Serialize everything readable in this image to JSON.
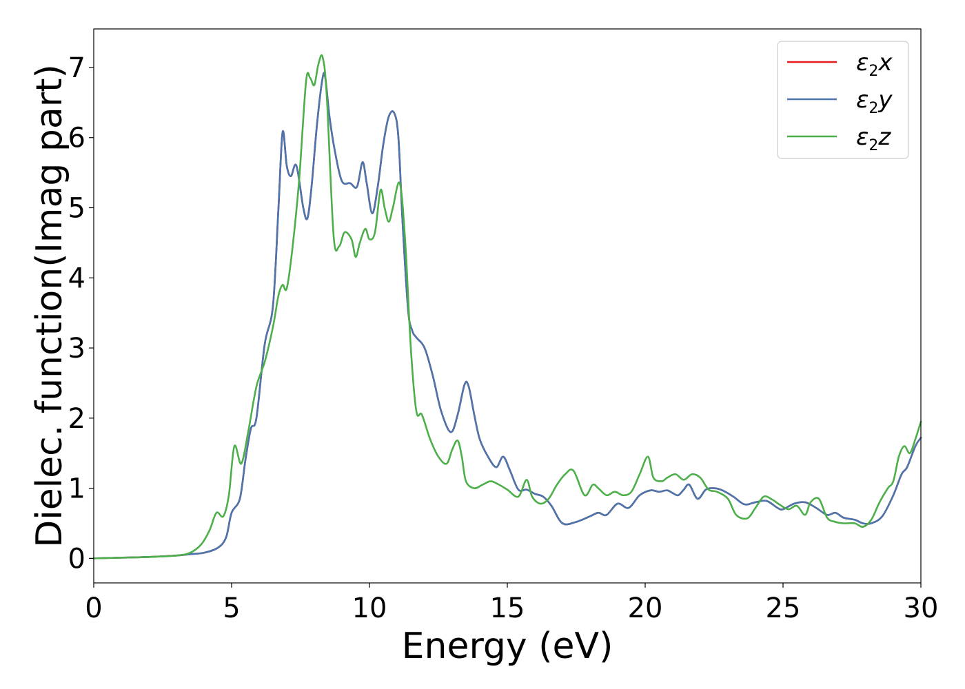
{
  "chart_data": {
    "type": "line",
    "xlabel": "Energy (eV)",
    "ylabel": "Dielec. function(Imag part)",
    "xlim": [
      0,
      30
    ],
    "ylim": [
      -0.35,
      7.55
    ],
    "xticks": [
      "0",
      "5",
      "10",
      "15",
      "20",
      "25",
      "30"
    ],
    "yticks": [
      "0",
      "1",
      "2",
      "3",
      "4",
      "5",
      "6",
      "7"
    ],
    "grid": false,
    "legend_position": "top-right",
    "series": [
      {
        "name": "ε2x",
        "legend_base": "ε",
        "legend_sub": "2",
        "legend_var": "x",
        "color": "#e41a1c",
        "x": [
          0,
          1,
          2,
          3,
          3.5,
          4,
          4.5,
          4.8,
          5.0,
          5.3,
          5.5,
          5.7,
          5.9,
          6.2,
          6.5,
          6.7,
          6.85,
          7.0,
          7.15,
          7.35,
          7.6,
          7.75,
          7.9,
          8.1,
          8.3,
          8.4,
          8.55,
          8.75,
          9.0,
          9.3,
          9.55,
          9.75,
          9.9,
          10.1,
          10.3,
          10.5,
          10.7,
          10.9,
          11.05,
          11.2,
          11.4,
          11.55,
          11.7,
          12.0,
          12.3,
          12.6,
          12.95,
          13.2,
          13.45,
          13.6,
          13.8,
          14.0,
          14.3,
          14.6,
          14.85,
          15.1,
          15.4,
          15.7,
          16.0,
          16.3,
          16.6,
          17.0,
          17.5,
          18.0,
          18.3,
          18.6,
          19.0,
          19.4,
          19.8,
          20.2,
          20.5,
          20.8,
          21.0,
          21.2,
          21.4,
          21.6,
          21.9,
          22.2,
          22.5,
          22.8,
          23.2,
          23.6,
          24.0,
          24.4,
          24.8,
          25.0,
          25.4,
          25.8,
          26.2,
          26.6,
          26.9,
          27.2,
          27.6,
          27.9,
          28.2,
          28.6,
          29.0,
          29.3,
          29.5,
          29.8,
          30.0
        ],
        "y": [
          0,
          0.01,
          0.02,
          0.04,
          0.06,
          0.08,
          0.15,
          0.3,
          0.65,
          0.85,
          1.4,
          1.85,
          2.0,
          3.05,
          3.6,
          5.0,
          6.08,
          5.6,
          5.45,
          5.6,
          5.0,
          4.85,
          5.3,
          6.2,
          6.85,
          6.85,
          6.3,
          5.8,
          5.38,
          5.35,
          5.3,
          5.65,
          5.35,
          4.92,
          5.3,
          5.9,
          6.3,
          6.35,
          6.0,
          4.8,
          3.55,
          3.25,
          3.15,
          3.0,
          2.6,
          2.1,
          1.8,
          2.05,
          2.48,
          2.45,
          2.05,
          1.7,
          1.45,
          1.3,
          1.45,
          1.25,
          0.98,
          0.98,
          0.92,
          0.88,
          0.75,
          0.5,
          0.52,
          0.6,
          0.65,
          0.62,
          0.78,
          0.72,
          0.9,
          0.97,
          0.95,
          0.97,
          0.93,
          0.9,
          0.98,
          1.05,
          0.85,
          0.98,
          1.0,
          0.97,
          0.88,
          0.77,
          0.8,
          0.82,
          0.72,
          0.7,
          0.78,
          0.8,
          0.72,
          0.62,
          0.65,
          0.58,
          0.55,
          0.5,
          0.5,
          0.6,
          0.9,
          1.2,
          1.3,
          1.6,
          1.72
        ]
      },
      {
        "name": "ε2y",
        "legend_base": "ε",
        "legend_sub": "2",
        "legend_var": "y",
        "color": "#4a76ad",
        "x": [
          0,
          1,
          2,
          3,
          3.5,
          4,
          4.5,
          4.8,
          5.0,
          5.3,
          5.5,
          5.7,
          5.9,
          6.2,
          6.5,
          6.7,
          6.85,
          7.0,
          7.15,
          7.35,
          7.6,
          7.75,
          7.9,
          8.1,
          8.3,
          8.4,
          8.55,
          8.75,
          9.0,
          9.3,
          9.55,
          9.75,
          9.9,
          10.1,
          10.3,
          10.5,
          10.7,
          10.9,
          11.05,
          11.2,
          11.4,
          11.55,
          11.7,
          12.0,
          12.3,
          12.6,
          12.95,
          13.2,
          13.45,
          13.6,
          13.8,
          14.0,
          14.3,
          14.6,
          14.85,
          15.1,
          15.4,
          15.7,
          16.0,
          16.3,
          16.6,
          17.0,
          17.5,
          18.0,
          18.3,
          18.6,
          19.0,
          19.4,
          19.8,
          20.2,
          20.5,
          20.8,
          21.0,
          21.2,
          21.4,
          21.6,
          21.9,
          22.2,
          22.5,
          22.8,
          23.2,
          23.6,
          24.0,
          24.4,
          24.8,
          25.0,
          25.4,
          25.8,
          26.2,
          26.6,
          26.9,
          27.2,
          27.6,
          27.9,
          28.2,
          28.6,
          29.0,
          29.3,
          29.5,
          29.8,
          30.0
        ],
        "y": [
          0,
          0.01,
          0.02,
          0.04,
          0.06,
          0.08,
          0.15,
          0.3,
          0.65,
          0.85,
          1.4,
          1.85,
          2.0,
          3.05,
          3.6,
          5.0,
          6.08,
          5.6,
          5.45,
          5.6,
          5.0,
          4.85,
          5.3,
          6.2,
          6.85,
          6.85,
          6.3,
          5.8,
          5.38,
          5.35,
          5.3,
          5.65,
          5.35,
          4.92,
          5.3,
          5.9,
          6.3,
          6.35,
          6.0,
          4.8,
          3.55,
          3.25,
          3.15,
          3.0,
          2.6,
          2.1,
          1.8,
          2.05,
          2.48,
          2.45,
          2.05,
          1.7,
          1.45,
          1.3,
          1.45,
          1.25,
          0.98,
          0.98,
          0.92,
          0.88,
          0.75,
          0.5,
          0.52,
          0.6,
          0.65,
          0.62,
          0.78,
          0.72,
          0.9,
          0.97,
          0.95,
          0.97,
          0.93,
          0.9,
          0.98,
          1.05,
          0.85,
          0.98,
          1.0,
          0.97,
          0.88,
          0.77,
          0.8,
          0.82,
          0.72,
          0.7,
          0.78,
          0.8,
          0.72,
          0.62,
          0.65,
          0.58,
          0.55,
          0.5,
          0.5,
          0.6,
          0.9,
          1.2,
          1.3,
          1.6,
          1.72
        ]
      },
      {
        "name": "ε2z",
        "legend_base": "ε",
        "legend_sub": "2",
        "legend_var": "z",
        "color": "#4daf4a",
        "x": [
          0,
          1,
          2,
          3,
          3.5,
          3.9,
          4.2,
          4.45,
          4.7,
          4.9,
          5.1,
          5.35,
          5.6,
          5.9,
          6.2,
          6.5,
          6.7,
          6.85,
          7.0,
          7.2,
          7.45,
          7.7,
          7.85,
          8.0,
          8.15,
          8.3,
          8.45,
          8.7,
          8.9,
          9.1,
          9.35,
          9.5,
          9.65,
          9.85,
          10.0,
          10.2,
          10.4,
          10.55,
          10.7,
          10.85,
          11.1,
          11.3,
          11.5,
          11.7,
          11.9,
          12.2,
          12.5,
          12.8,
          13.0,
          13.2,
          13.35,
          13.5,
          13.8,
          14.1,
          14.4,
          14.7,
          15.0,
          15.4,
          15.7,
          15.9,
          16.2,
          16.5,
          16.8,
          17.1,
          17.4,
          17.8,
          18.1,
          18.3,
          18.6,
          18.9,
          19.2,
          19.5,
          19.8,
          20.1,
          20.3,
          20.6,
          20.8,
          21.1,
          21.4,
          21.7,
          22.0,
          22.3,
          22.6,
          23.0,
          23.3,
          23.7,
          24.0,
          24.3,
          24.6,
          24.9,
          25.2,
          25.5,
          25.8,
          26.0,
          26.3,
          26.6,
          26.9,
          27.2,
          27.6,
          27.9,
          28.2,
          28.5,
          28.8,
          29.0,
          29.2,
          29.4,
          29.6,
          29.8,
          30.0
        ],
        "y": [
          0,
          0.01,
          0.02,
          0.04,
          0.08,
          0.2,
          0.4,
          0.65,
          0.6,
          0.9,
          1.6,
          1.35,
          1.8,
          2.45,
          2.8,
          3.3,
          3.75,
          3.9,
          3.85,
          4.4,
          5.4,
          6.8,
          6.85,
          6.75,
          7.05,
          7.15,
          6.6,
          4.6,
          4.45,
          4.65,
          4.55,
          4.3,
          4.5,
          4.7,
          4.55,
          4.65,
          5.25,
          5.0,
          4.8,
          5.0,
          5.35,
          4.5,
          3.0,
          2.1,
          2.05,
          1.7,
          1.45,
          1.35,
          1.55,
          1.68,
          1.45,
          1.1,
          1.0,
          1.05,
          1.1,
          1.05,
          0.98,
          0.88,
          1.12,
          0.88,
          0.78,
          0.85,
          1.05,
          1.2,
          1.25,
          0.9,
          1.05,
          1.0,
          0.9,
          0.95,
          0.9,
          0.95,
          1.2,
          1.45,
          1.15,
          1.1,
          1.15,
          1.2,
          1.12,
          1.2,
          1.15,
          0.98,
          0.95,
          0.85,
          0.62,
          0.57,
          0.72,
          0.88,
          0.84,
          0.76,
          0.7,
          0.75,
          0.62,
          0.8,
          0.85,
          0.58,
          0.52,
          0.5,
          0.5,
          0.45,
          0.55,
          0.8,
          1.0,
          1.1,
          1.45,
          1.6,
          1.5,
          1.7,
          1.95
        ]
      }
    ]
  }
}
